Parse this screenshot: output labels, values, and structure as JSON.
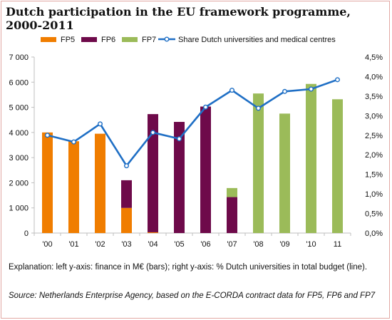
{
  "chart_title_line1": "Dutch participation  in the EU framework programme,",
  "chart_title_line2": "2000-2011",
  "explanation": "Explanation: left y-axis: finance in M€ (bars); right y-axis: % Dutch universities in total budget (line).",
  "source": "Source: Netherlands Enterprise Agency, based on the E-CORDA contract data for FP5, FP6 and FP7",
  "chart_data": {
    "type": "bar",
    "stacked": true,
    "categories": [
      "'00",
      "'01",
      "'02",
      "'03",
      "'04",
      "'05",
      "'06",
      "'07",
      "'08",
      "'09",
      "'10",
      "11"
    ],
    "series": [
      {
        "name": "FP5",
        "color": "#f07d00",
        "values": [
          4000,
          3650,
          3950,
          1000,
          30,
          0,
          0,
          0,
          0,
          0,
          0,
          0
        ]
      },
      {
        "name": "FP6",
        "color": "#6e0a4a",
        "values": [
          0,
          0,
          0,
          1100,
          4700,
          4420,
          5030,
          1430,
          0,
          0,
          0,
          0
        ]
      },
      {
        "name": "FP7",
        "color": "#9bbb59",
        "values": [
          0,
          0,
          0,
          0,
          0,
          0,
          0,
          360,
          5550,
          4750,
          5930,
          5320
        ]
      }
    ],
    "line_series": {
      "name": "Share Dutch universities and medical centres",
      "color": "#1f6fc5",
      "axis": "right",
      "values": [
        2.5,
        2.33,
        2.79,
        1.72,
        2.57,
        2.41,
        3.22,
        3.65,
        3.19,
        3.62,
        3.68,
        3.92
      ]
    },
    "y_left": {
      "min": 0,
      "max": 7000,
      "ticks": [
        "0",
        "1 000",
        "2 000",
        "3 000",
        "4 000",
        "5 000",
        "6 000",
        "7 000"
      ]
    },
    "y_right": {
      "min": 0,
      "max": 4.5,
      "ticks": [
        "0,0%",
        "0,5%",
        "1,0%",
        "1,5%",
        "2,0%",
        "2,5%",
        "3,0%",
        "3,5%",
        "4,0%",
        "4,5%"
      ]
    },
    "legend_position": "top",
    "grid": false
  }
}
